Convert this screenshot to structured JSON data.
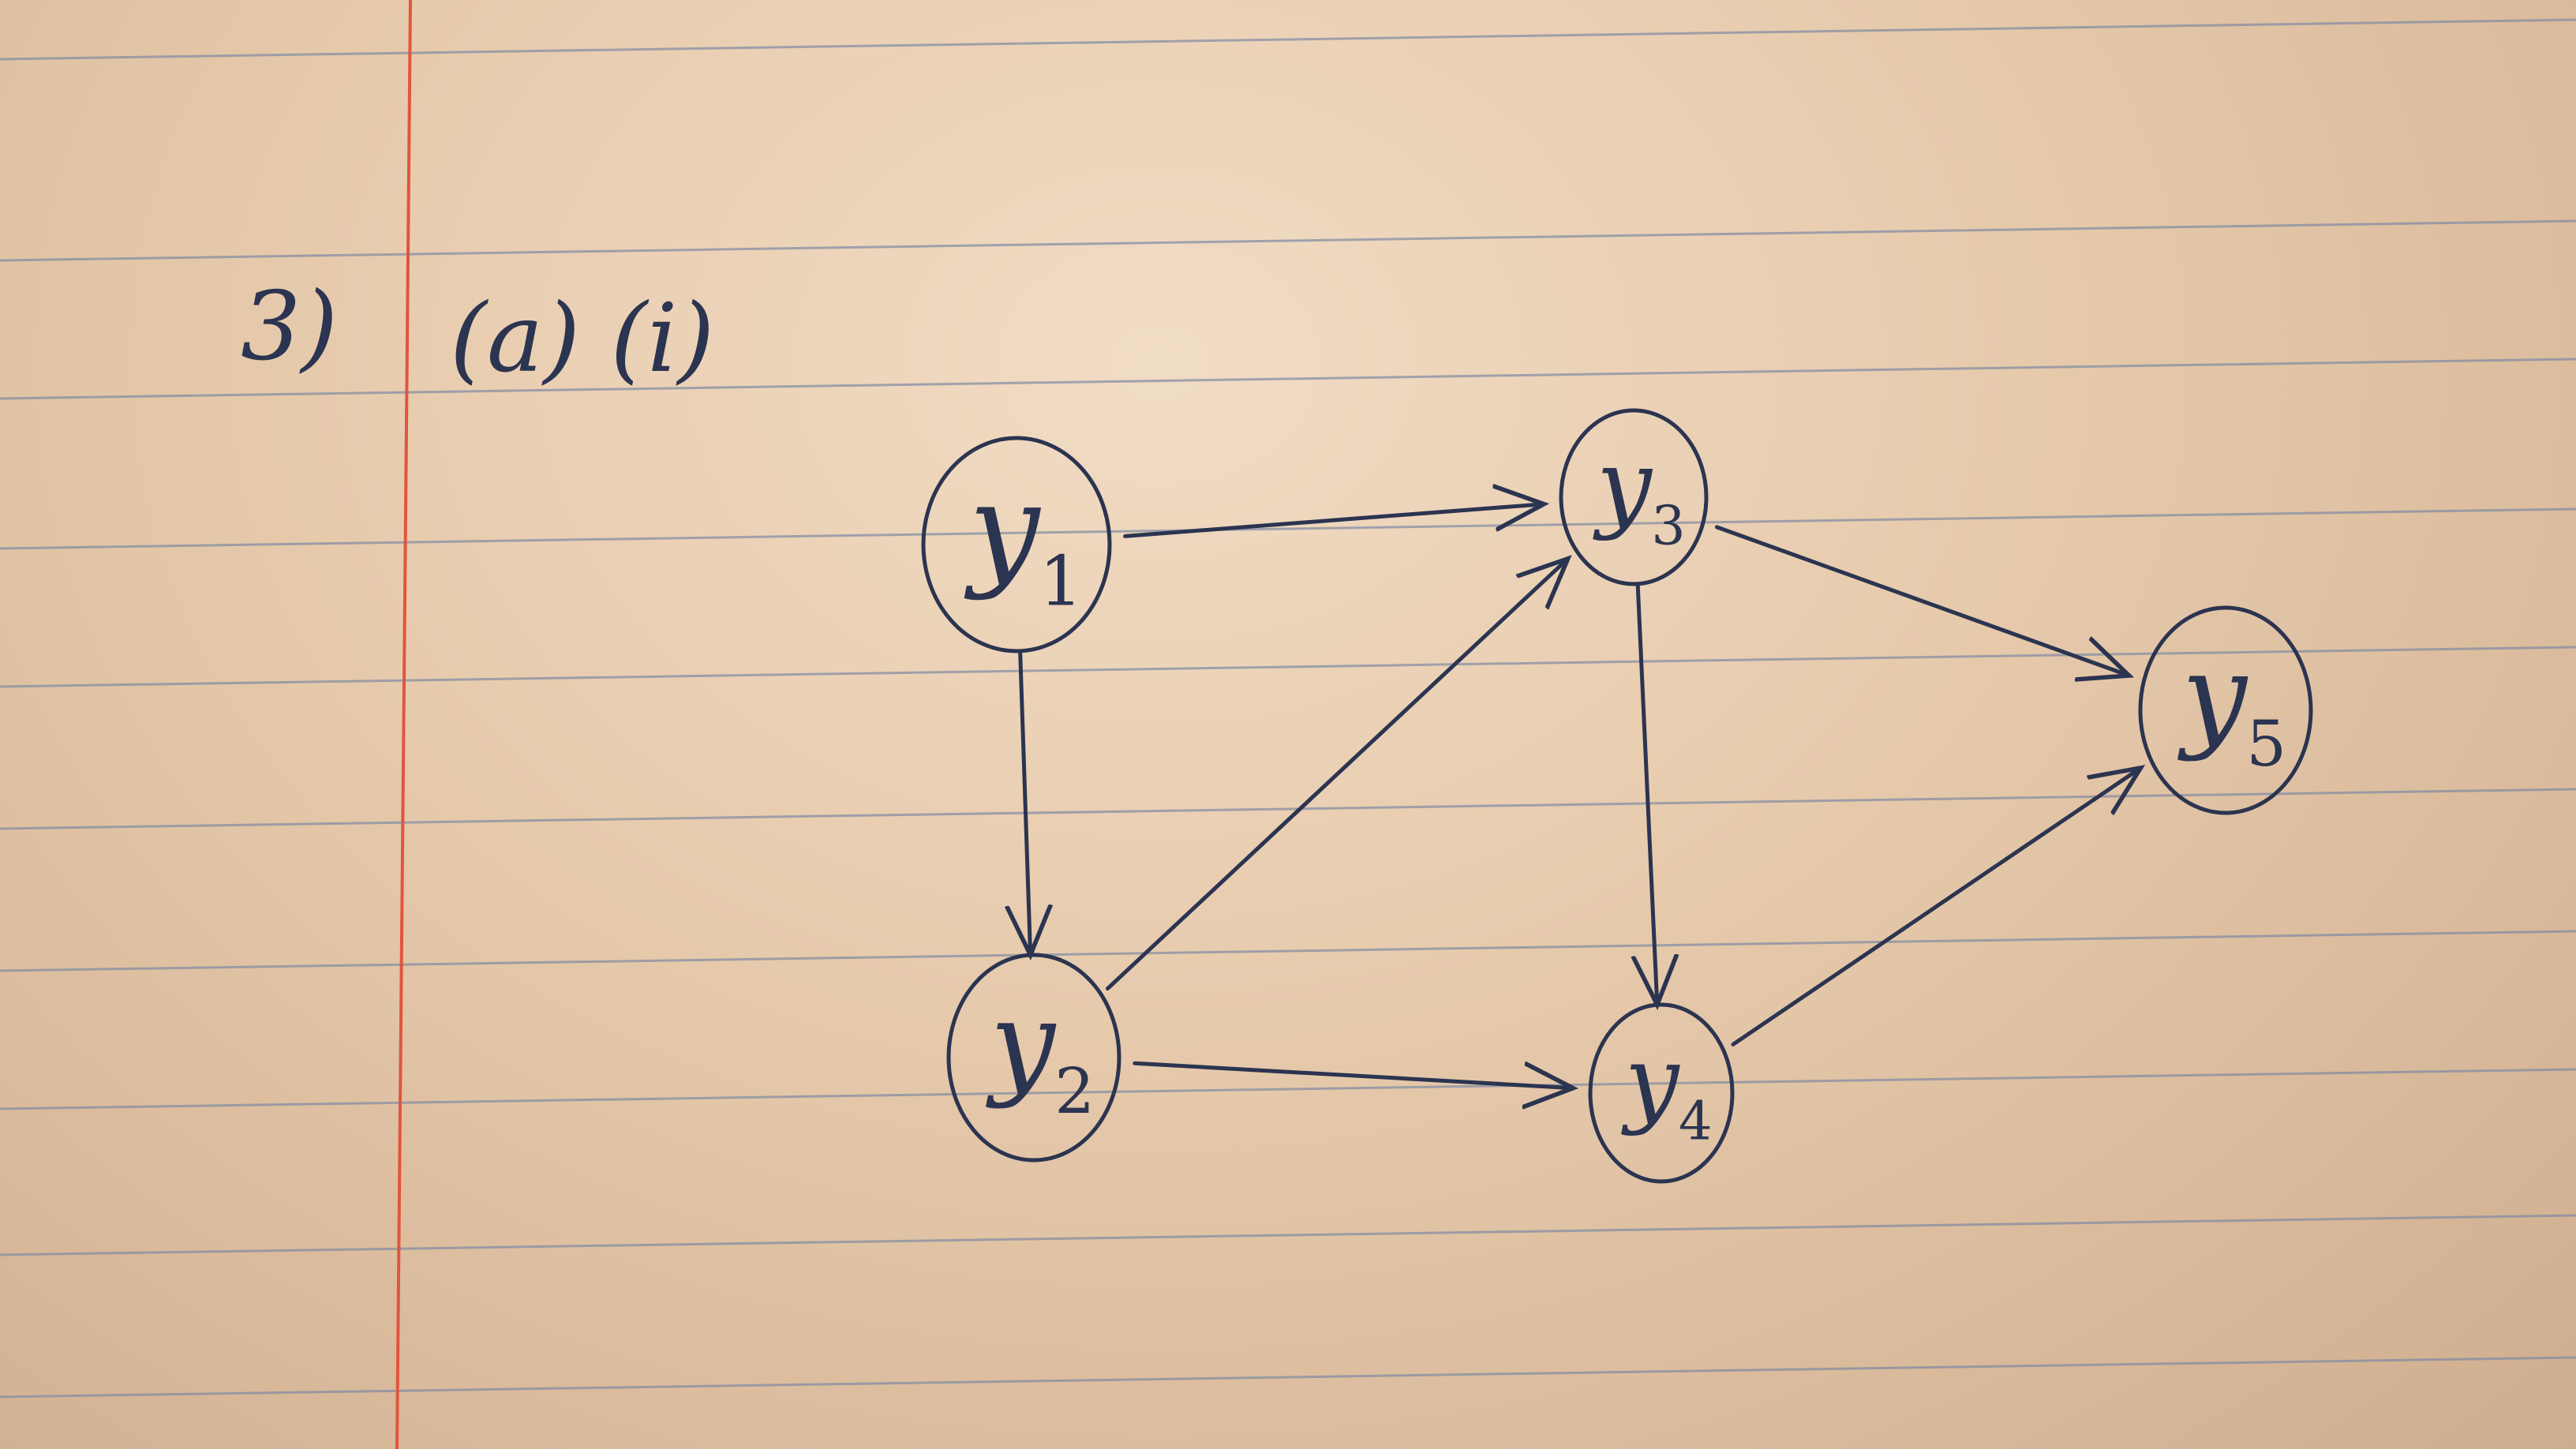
{
  "heading": {
    "number": "3)",
    "part": "(a) (i)"
  },
  "nodes": [
    {
      "id": "y1",
      "letter": "y",
      "subscript": "1"
    },
    {
      "id": "y2",
      "letter": "y",
      "subscript": "2"
    },
    {
      "id": "y3",
      "letter": "y",
      "subscript": "3"
    },
    {
      "id": "y4",
      "letter": "y",
      "subscript": "4"
    },
    {
      "id": "y5",
      "letter": "y",
      "subscript": "5"
    }
  ],
  "edges": [
    {
      "from": "y1",
      "to": "y3"
    },
    {
      "from": "y1",
      "to": "y2"
    },
    {
      "from": "y2",
      "to": "y3"
    },
    {
      "from": "y2",
      "to": "y4"
    },
    {
      "from": "y3",
      "to": "y4"
    },
    {
      "from": "y3",
      "to": "y5"
    },
    {
      "from": "y4",
      "to": "y5"
    }
  ],
  "colors": {
    "ink": "#2b3450",
    "ruled_line": "#7f8ba3",
    "margin_line": "#e0553f"
  }
}
